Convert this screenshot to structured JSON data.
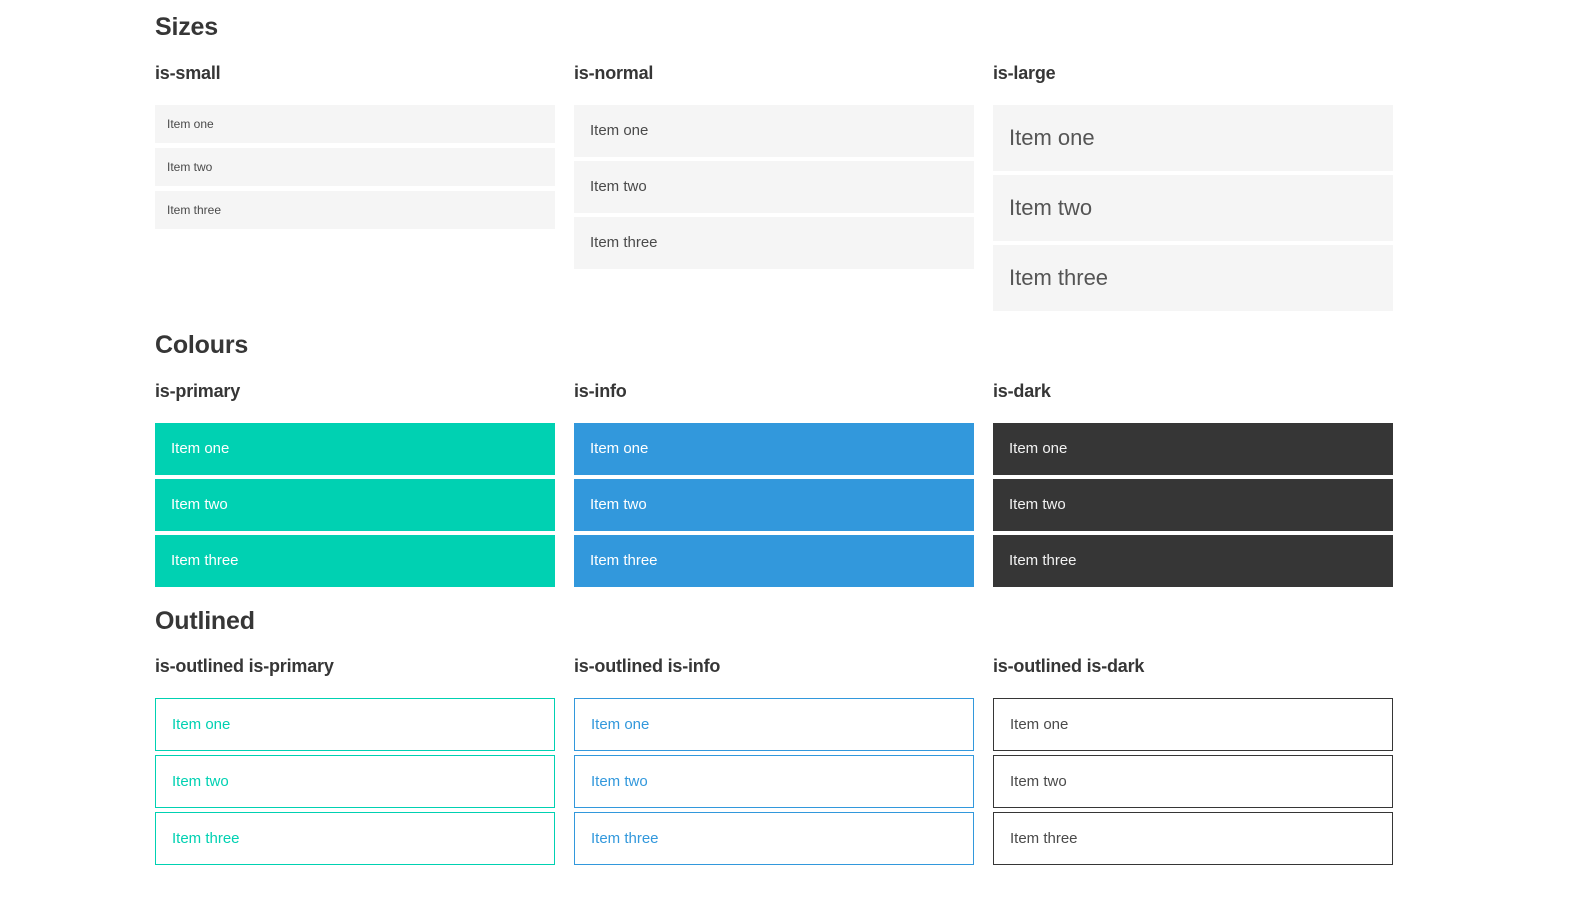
{
  "colors": {
    "primary": "#00d1b2",
    "info": "#3298dc",
    "dark": "#363636",
    "item_bg": "#f5f5f5",
    "item_text": "#4a4a4a",
    "heading": "#363636"
  },
  "sections": [
    {
      "title": "Sizes",
      "groups": [
        {
          "label": "is-small",
          "items": [
            "Item one",
            "Item two",
            "Item three"
          ]
        },
        {
          "label": "is-normal",
          "items": [
            "Item one",
            "Item two",
            "Item three"
          ]
        },
        {
          "label": "is-large",
          "items": [
            "Item one",
            "Item two",
            "Item three"
          ]
        }
      ]
    },
    {
      "title": "Colours",
      "groups": [
        {
          "label": "is-primary",
          "items": [
            "Item one",
            "Item two",
            "Item three"
          ]
        },
        {
          "label": "is-info",
          "items": [
            "Item one",
            "Item two",
            "Item three"
          ]
        },
        {
          "label": "is-dark",
          "items": [
            "Item one",
            "Item two",
            "Item three"
          ]
        }
      ]
    },
    {
      "title": "Outlined",
      "groups": [
        {
          "label": "is-outlined is-primary",
          "items": [
            "Item one",
            "Item two",
            "Item three"
          ]
        },
        {
          "label": "is-outlined is-info",
          "items": [
            "Item one",
            "Item two",
            "Item three"
          ]
        },
        {
          "label": "is-outlined is-dark",
          "items": [
            "Item one",
            "Item two",
            "Item three"
          ]
        }
      ]
    }
  ]
}
